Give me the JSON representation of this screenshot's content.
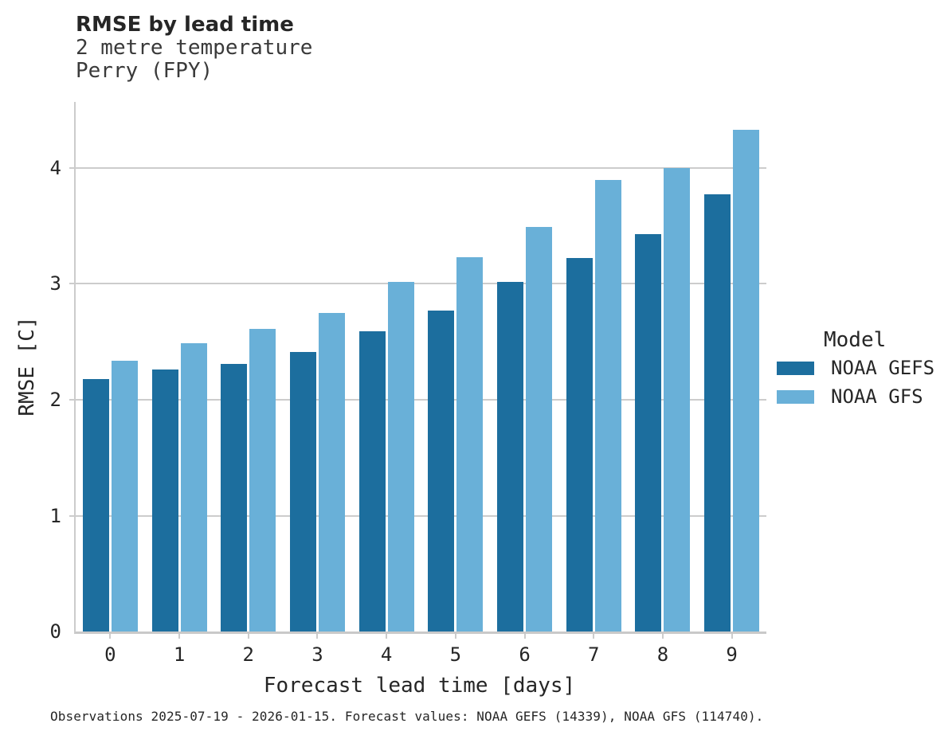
{
  "colors": {
    "text": "#262626",
    "grid": "#cccccc",
    "axis": "#c9c9c9",
    "background": "#ffffff"
  },
  "legend": {
    "title": "Model"
  },
  "footer": {
    "text": "Observations 2025-07-19 - 2026-01-15. Forecast values: NOAA GEFS (14339), NOAA GFS (114740)."
  },
  "chart_data": {
    "type": "bar",
    "title": "RMSE by lead time",
    "subtitle": [
      "2 metre temperature",
      "Perry (FPY)"
    ],
    "categories": [
      "0",
      "1",
      "2",
      "3",
      "4",
      "5",
      "6",
      "7",
      "8",
      "9"
    ],
    "series": [
      {
        "name": "NOAA GEFS",
        "color": "#1c6e9e",
        "values": [
          2.18,
          2.26,
          2.31,
          2.41,
          2.59,
          2.77,
          3.02,
          3.22,
          3.43,
          3.77
        ]
      },
      {
        "name": "NOAA GFS",
        "color": "#69b0d8",
        "values": [
          2.34,
          2.49,
          2.61,
          2.75,
          3.02,
          3.23,
          3.49,
          3.9,
          4.0,
          4.33
        ]
      }
    ],
    "xlabel": "Forecast lead time [days]",
    "ylabel": "RMSE [C]",
    "ylim": [
      0,
      4.57
    ],
    "yticks": [
      0,
      1,
      2,
      3,
      4
    ],
    "grid": "horizontal",
    "legend_position": "right",
    "legend_title": "Model"
  }
}
